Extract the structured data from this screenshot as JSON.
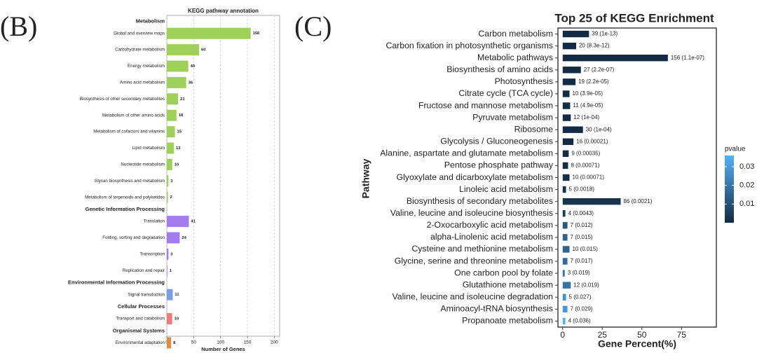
{
  "chart_data": [
    {
      "type": "grouped_hbar",
      "panel_label": "(B)",
      "title": "KEGG pathway annotation",
      "x_label": "Number of Genes",
      "xlim": [
        0,
        210
      ],
      "xticks": [
        0,
        50,
        100,
        150,
        200
      ],
      "grid": true,
      "groups": [
        {
          "name": "Metabolism",
          "color": "#9fd05a",
          "categories": [
            "Global and overview maps",
            "Carbohydrate metabolism",
            "Energy metabolism",
            "Amino acid metabolism",
            "Biosynthesis of other secondary metabolites",
            "Metabolism of other amino acids",
            "Metabolism of cofactors and vitamins",
            "Lipid metabolism",
            "Nucleotide metabolism",
            "Glycan biosynthesis and metabolism",
            "Metabolism of terpenoids and polyketides"
          ],
          "values": [
            156,
            60,
            40,
            36,
            21,
            18,
            15,
            13,
            10,
            3,
            2
          ]
        },
        {
          "name": "Genetic Information Processing",
          "color": "#a57cf0",
          "categories": [
            "Translation",
            "Folding, sorting and degradation",
            "Transcription",
            "Replication and repair"
          ],
          "values": [
            41,
            24,
            3,
            1
          ]
        },
        {
          "name": "Environmental Information Processing",
          "color": "#7a9ee6",
          "categories": [
            "Signal transduction"
          ],
          "values": [
            11
          ]
        },
        {
          "name": "Cellular Processes",
          "color": "#ee7a7a",
          "categories": [
            "Transport and catabolism"
          ],
          "values": [
            10
          ]
        },
        {
          "name": "Organismal Systems",
          "color": "#e08a4a",
          "categories": [
            "Environmental adaptation"
          ],
          "values": [
            8
          ]
        }
      ]
    },
    {
      "type": "hbar_colored",
      "panel_label": "(C)",
      "title": "Top 25 of KEGG Enrichment",
      "x_label": "Gene Percent(%)",
      "y_label": "Pathway",
      "xlim": [
        -3,
        97
      ],
      "xticks": [
        0,
        25,
        50,
        75
      ],
      "categories": [
        "Carbon metabolism",
        "Carbon fixation in photosynthetic organisms",
        "Metabolic pathways",
        "Biosynthesis of amino acids",
        "Photosynthesis",
        "Citrate cycle (TCA cycle)",
        "Fructose and mannose metabolism",
        "Pyruvate metabolism",
        "Ribosome",
        "Glycolysis / Gluconeogenesis",
        "Alanine, aspartate and glutamate metabolism",
        "Pentose phosphate pathway",
        "Glyoxylate and dicarboxylate metabolism",
        "Linoleic acid metabolism",
        "Biosynthesis of secondary metabolites",
        "Valine, leucine and isoleucine biosynthesis",
        "2-Oxocarboxylic acid metabolism",
        "alpha-Linolenic acid metabolism",
        "Cysteine and methionine metabolism",
        "Glycine, serine and threonine metabolism",
        "One carbon pool by folate",
        "Glutathione metabolism",
        "Valine, leucine and isoleucine degradation",
        "Aminoacyl-tRNA biosynthesis",
        "Propanoate metabolism"
      ],
      "values": [
        16.6,
        8.5,
        66.4,
        11.5,
        8.1,
        4.3,
        4.7,
        5.1,
        12.8,
        6.8,
        3.8,
        3.4,
        4.3,
        2.1,
        36.6,
        1.7,
        3.0,
        3.0,
        4.3,
        3.0,
        1.3,
        5.1,
        2.1,
        3.0,
        1.7
      ],
      "labels": [
        "39 (1e-13)",
        "20 (8.3e-12)",
        "156 (1.1e-07)",
        "27 (2.2e-07)",
        "19 (2.2e-05)",
        "10 (3.9e-05)",
        "11 (4.9e-05)",
        "12 (1e-04)",
        "30 (1e-04)",
        "16 (0.00021)",
        "9 (0.00035)",
        "8 (0.00071)",
        "10 (0.00071)",
        "5 (0.0018)",
        "86 (0.0021)",
        "4 (0.0043)",
        "7 (0.012)",
        "7 (0.015)",
        "10 (0.015)",
        "7 (0.017)",
        "3 (0.019)",
        "12 (0.019)",
        "5 (0.027)",
        "7 (0.029)",
        "4 (0.036)"
      ],
      "pvalues": [
        1e-13,
        8.3e-12,
        1.1e-07,
        2.2e-07,
        2.2e-05,
        3.9e-05,
        4.9e-05,
        0.0001,
        0.0001,
        0.00021,
        0.00035,
        0.00071,
        0.00071,
        0.0018,
        0.0021,
        0.0043,
        0.012,
        0.015,
        0.015,
        0.017,
        0.019,
        0.019,
        0.027,
        0.029,
        0.036
      ],
      "colorscale": [
        "#132b43",
        "#56b1f7"
      ],
      "clim": [
        0,
        0.036
      ],
      "colorbar_title": "pvalue",
      "colorbar_ticks": [
        0.01,
        0.02,
        0.03
      ]
    }
  ]
}
